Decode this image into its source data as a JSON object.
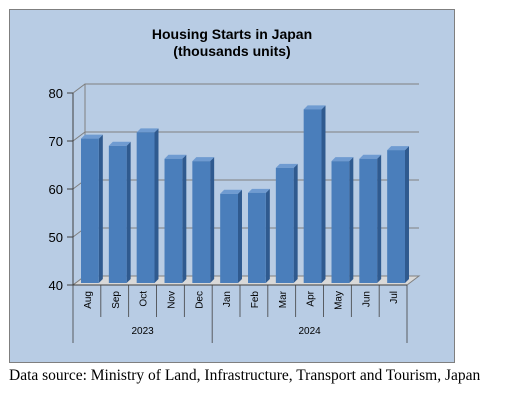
{
  "chart_data": {
    "type": "bar",
    "title": [
      "Housing Starts in Japan",
      "(thousands units)"
    ],
    "categories": [
      "Aug",
      "Sep",
      "Oct",
      "Nov",
      "Dec",
      "Jan",
      "Feb",
      "Mar",
      "Apr",
      "May",
      "Jun",
      "Jul"
    ],
    "groups": [
      {
        "label": "2023",
        "categories": [
          "Aug",
          "Sep",
          "Oct",
          "Nov",
          "Dec"
        ]
      },
      {
        "label": "2024",
        "categories": [
          "Jan",
          "Feb",
          "Mar",
          "Apr",
          "May",
          "Jun",
          "Jul"
        ]
      }
    ],
    "values": [
      70.5,
      69.0,
      71.8,
      66.3,
      65.8,
      59.0,
      59.2,
      64.4,
      76.6,
      65.8,
      66.3,
      68.1
    ],
    "yticks": [
      40,
      50,
      60,
      70,
      80
    ],
    "ylim": [
      40,
      80
    ],
    "grid": true,
    "colors": {
      "bar_front": "#4a7ebb",
      "bar_side": "#2f5a8f",
      "bar_top": "#6f9bd1",
      "background": "#b8cce4",
      "gridline": "#7f7f7f"
    }
  },
  "source_note": "Data source: Ministry of Land, Infrastructure, Transport and Tourism, Japan"
}
